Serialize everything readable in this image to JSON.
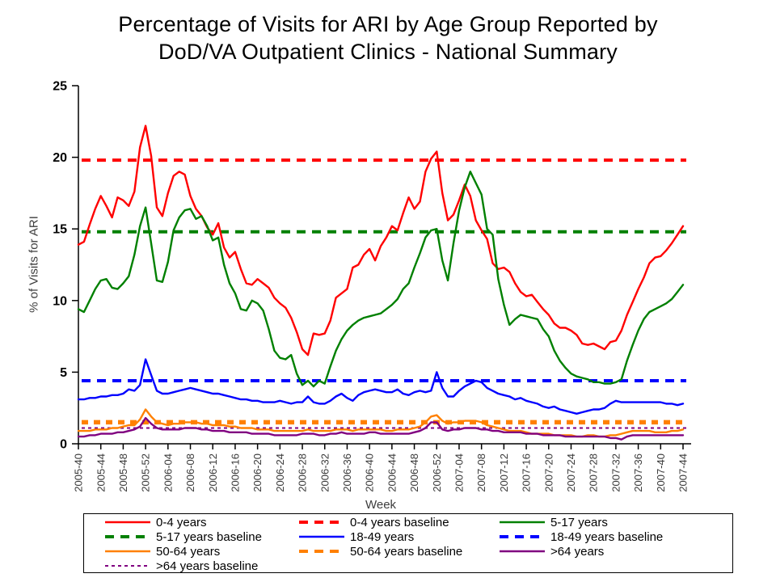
{
  "title": {
    "line1": "Percentage of Visits for ARI by Age Group Reported by",
    "line2": "DoD/VA Outpatient Clinics - National Summary"
  },
  "chart_data": {
    "type": "line",
    "title": "Percentage of Visits for ARI by Age Group Reported by DoD/VA Outpatient Clinics - National Summary",
    "xlabel": "Week",
    "ylabel": "% of Visits for ARI",
    "ylim": [
      0,
      25
    ],
    "yticks": [
      0,
      5,
      10,
      15,
      20,
      25
    ],
    "grid": false,
    "legend_position": "bottom",
    "weeks_per_tick": 4,
    "n_points": 109,
    "x_tick_labels": [
      "2005-40",
      "2005-44",
      "2005-48",
      "2005-52",
      "2006-04",
      "2006-08",
      "2006-12",
      "2006-16",
      "2006-20",
      "2006-24",
      "2006-28",
      "2006-32",
      "2006-36",
      "2006-40",
      "2006-44",
      "2006-48",
      "2006-52",
      "2007-04",
      "2007-08",
      "2007-12",
      "2007-16",
      "2007-20",
      "2007-24",
      "2007-28",
      "2007-32",
      "2007-36",
      "2007-40",
      "2007-44"
    ],
    "series": [
      {
        "name": "0-4 years",
        "color": "#ff0000",
        "style": "solid",
        "values": [
          13.9,
          14.1,
          15.3,
          16.4,
          17.3,
          16.6,
          15.8,
          17.2,
          17.0,
          16.6,
          17.6,
          20.7,
          22.2,
          20.1,
          16.5,
          15.9,
          17.5,
          18.7,
          19.0,
          18.8,
          17.3,
          16.4,
          15.9,
          15.1,
          14.6,
          15.4,
          13.7,
          13.0,
          13.4,
          12.2,
          11.2,
          11.1,
          11.5,
          11.2,
          10.9,
          10.2,
          9.8,
          9.5,
          8.8,
          7.8,
          6.6,
          6.2,
          7.7,
          7.6,
          7.7,
          8.6,
          10.2,
          10.5,
          10.8,
          12.3,
          12.5,
          13.2,
          13.6,
          12.8,
          13.8,
          14.4,
          15.2,
          14.9,
          16.1,
          17.2,
          16.4,
          16.9,
          19.0,
          19.9,
          20.4,
          17.5,
          15.6,
          16.0,
          17.0,
          18.1,
          17.3,
          15.6,
          14.9,
          14.3,
          12.6,
          12.2,
          12.3,
          12.0,
          11.2,
          10.6,
          10.3,
          10.4,
          9.9,
          9.4,
          9.0,
          8.4,
          8.1,
          8.1,
          7.9,
          7.6,
          7.0,
          6.9,
          7.0,
          6.8,
          6.6,
          7.1,
          7.2,
          7.9,
          9.0,
          9.9,
          10.8,
          11.6,
          12.6,
          13.0,
          13.1,
          13.5,
          14.0,
          14.6,
          15.2
        ]
      },
      {
        "name": "5-17 years",
        "color": "#008000",
        "style": "solid",
        "values": [
          9.4,
          9.2,
          10.0,
          10.8,
          11.4,
          11.5,
          10.9,
          10.8,
          11.2,
          11.7,
          13.2,
          15.2,
          16.5,
          14.0,
          11.4,
          11.3,
          12.7,
          14.9,
          15.8,
          16.3,
          16.4,
          15.7,
          15.9,
          15.2,
          14.2,
          14.4,
          12.5,
          11.2,
          10.5,
          9.4,
          9.3,
          10.0,
          9.8,
          9.3,
          8.0,
          6.5,
          6.0,
          5.9,
          6.2,
          4.9,
          4.1,
          4.4,
          4.0,
          4.4,
          4.2,
          5.4,
          6.5,
          7.3,
          7.9,
          8.3,
          8.6,
          8.8,
          8.9,
          9.0,
          9.1,
          9.4,
          9.7,
          10.1,
          10.8,
          11.2,
          12.3,
          13.3,
          14.4,
          14.9,
          15.0,
          12.8,
          11.4,
          14.0,
          16.3,
          17.9,
          19.0,
          18.2,
          17.4,
          15.0,
          14.6,
          11.5,
          9.7,
          8.3,
          8.7,
          9.0,
          8.9,
          8.8,
          8.7,
          8.0,
          7.5,
          6.5,
          5.8,
          5.3,
          4.9,
          4.7,
          4.6,
          4.5,
          4.3,
          4.3,
          4.2,
          4.2,
          4.3,
          4.5,
          5.8,
          6.9,
          7.9,
          8.7,
          9.2,
          9.4,
          9.6,
          9.8,
          10.1,
          10.6,
          11.1
        ]
      },
      {
        "name": "18-49 years",
        "color": "#0000ff",
        "style": "solid",
        "values": [
          3.1,
          3.1,
          3.2,
          3.2,
          3.3,
          3.3,
          3.4,
          3.4,
          3.5,
          3.8,
          3.7,
          4.1,
          5.9,
          4.8,
          3.7,
          3.5,
          3.5,
          3.6,
          3.7,
          3.8,
          3.9,
          3.8,
          3.7,
          3.6,
          3.5,
          3.5,
          3.4,
          3.3,
          3.2,
          3.1,
          3.1,
          3.0,
          3.0,
          2.9,
          2.9,
          2.9,
          3.0,
          2.9,
          2.8,
          2.9,
          2.9,
          3.3,
          2.9,
          2.8,
          2.8,
          3.0,
          3.3,
          3.5,
          3.2,
          3.0,
          3.4,
          3.6,
          3.7,
          3.8,
          3.7,
          3.6,
          3.6,
          3.8,
          3.5,
          3.4,
          3.6,
          3.7,
          3.6,
          3.7,
          5.0,
          3.9,
          3.3,
          3.3,
          3.7,
          4.0,
          4.2,
          4.4,
          4.3,
          3.9,
          3.7,
          3.5,
          3.4,
          3.3,
          3.1,
          3.2,
          3.0,
          2.9,
          2.8,
          2.6,
          2.5,
          2.6,
          2.4,
          2.3,
          2.2,
          2.1,
          2.2,
          2.3,
          2.4,
          2.4,
          2.5,
          2.8,
          3.0,
          2.9,
          2.9,
          2.9,
          2.9,
          2.9,
          2.9,
          2.9,
          2.9,
          2.8,
          2.8,
          2.7,
          2.8
        ]
      },
      {
        "name": "50-64 years",
        "color": "#ff8000",
        "style": "solid",
        "values": [
          0.9,
          0.9,
          0.9,
          1.0,
          1.0,
          1.0,
          1.1,
          1.1,
          1.2,
          1.3,
          1.3,
          1.7,
          2.4,
          1.9,
          1.5,
          1.4,
          1.3,
          1.4,
          1.4,
          1.5,
          1.5,
          1.5,
          1.4,
          1.4,
          1.3,
          1.3,
          1.3,
          1.2,
          1.2,
          1.1,
          1.1,
          1.1,
          1.0,
          1.0,
          1.0,
          0.9,
          0.9,
          0.9,
          0.9,
          0.9,
          0.9,
          1.0,
          0.9,
          0.9,
          0.9,
          0.9,
          1.0,
          1.0,
          1.0,
          0.9,
          1.0,
          1.0,
          1.0,
          1.0,
          1.0,
          0.9,
          0.9,
          1.0,
          1.0,
          1.0,
          1.1,
          1.2,
          1.5,
          1.9,
          2.0,
          1.6,
          1.4,
          1.5,
          1.5,
          1.6,
          1.6,
          1.6,
          1.5,
          1.3,
          1.2,
          1.1,
          1.0,
          0.9,
          0.9,
          0.9,
          0.8,
          0.7,
          0.7,
          0.7,
          0.7,
          0.6,
          0.6,
          0.6,
          0.6,
          0.5,
          0.5,
          0.6,
          0.6,
          0.5,
          0.5,
          0.6,
          0.6,
          0.7,
          0.8,
          0.9,
          0.9,
          0.9,
          0.9,
          0.8,
          0.8,
          0.8,
          0.9,
          0.9,
          1.0
        ]
      },
      {
        "name": ">64 years",
        "color": "#800080",
        "style": "solid",
        "values": [
          0.5,
          0.5,
          0.6,
          0.6,
          0.7,
          0.7,
          0.7,
          0.8,
          0.8,
          0.9,
          1.0,
          1.2,
          1.8,
          1.4,
          1.1,
          1.0,
          1.0,
          1.0,
          1.0,
          1.1,
          1.1,
          1.1,
          1.0,
          1.0,
          0.9,
          0.9,
          0.9,
          0.8,
          0.8,
          0.8,
          0.8,
          0.7,
          0.7,
          0.7,
          0.7,
          0.6,
          0.6,
          0.6,
          0.6,
          0.6,
          0.7,
          0.7,
          0.7,
          0.6,
          0.6,
          0.7,
          0.7,
          0.8,
          0.7,
          0.7,
          0.7,
          0.7,
          0.8,
          0.8,
          0.7,
          0.7,
          0.7,
          0.7,
          0.7,
          0.7,
          0.8,
          0.9,
          1.1,
          1.5,
          1.5,
          1.0,
          0.9,
          1.0,
          1.0,
          1.1,
          1.1,
          1.1,
          1.0,
          1.0,
          0.9,
          0.9,
          0.8,
          0.8,
          0.8,
          0.8,
          0.7,
          0.7,
          0.7,
          0.6,
          0.6,
          0.6,
          0.6,
          0.5,
          0.5,
          0.5,
          0.5,
          0.5,
          0.5,
          0.5,
          0.5,
          0.4,
          0.4,
          0.3,
          0.5,
          0.6,
          0.6,
          0.6,
          0.6,
          0.6,
          0.6,
          0.6,
          0.6,
          0.6,
          0.6
        ]
      }
    ],
    "baselines": [
      {
        "name": "0-4 years baseline",
        "color": "#ff0000",
        "value": 19.8,
        "style": "dashed"
      },
      {
        "name": "5-17 years baseline",
        "color": "#008000",
        "value": 14.8,
        "style": "dashed"
      },
      {
        "name": "18-49 years baseline",
        "color": "#0000ff",
        "value": 4.4,
        "style": "dashed"
      },
      {
        "name": "50-64 years baseline",
        "color": "#ff8000",
        "value": 1.5,
        "style": "dashed-thick"
      },
      {
        "name": ">64 years baseline",
        "color": "#800080",
        "value": 1.1,
        "style": "dashed-fine"
      }
    ]
  },
  "legend": {
    "entries": [
      {
        "label": "0-4 years",
        "color": "#ff0000",
        "style": "solid"
      },
      {
        "label": "0-4 years baseline",
        "color": "#ff0000",
        "style": "dashed"
      },
      {
        "label": "5-17 years",
        "color": "#008000",
        "style": "solid"
      },
      {
        "label": "5-17 years baseline",
        "color": "#008000",
        "style": "dashed"
      },
      {
        "label": "18-49 years",
        "color": "#0000ff",
        "style": "solid"
      },
      {
        "label": "18-49 years baseline",
        "color": "#0000ff",
        "style": "dashed"
      },
      {
        "label": "50-64 years",
        "color": "#ff8000",
        "style": "solid"
      },
      {
        "label": "50-64 years baseline",
        "color": "#ff8000",
        "style": "dashed"
      },
      {
        "label": ">64 years",
        "color": "#800080",
        "style": "solid"
      },
      {
        "label": ">64 years baseline",
        "color": "#800080",
        "style": "dashed-fine"
      }
    ]
  }
}
